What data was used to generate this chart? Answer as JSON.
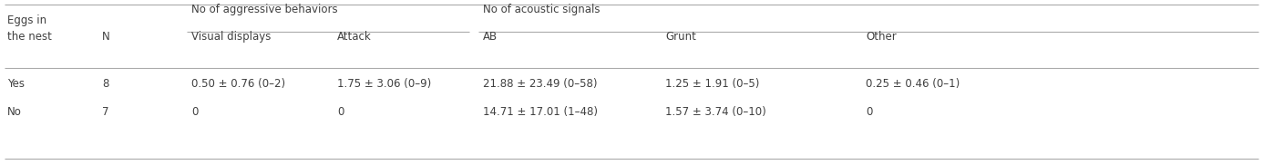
{
  "col_headers_row1_agg": "No of aggressive behaviors",
  "col_headers_row1_aco": "No of acoustic signals",
  "col_headers_row2": [
    "Eggs in\nthe nest",
    "N",
    "Visual displays",
    "Attack",
    "AB",
    "Grunt",
    "Other"
  ],
  "rows": [
    [
      "Yes",
      "8",
      "0.50 ± 0.76 (0–2)",
      "1.75 ± 3.06 (0–9)",
      "21.88 ± 23.49 (0–58)",
      "1.25 ± 1.91 (0–5)",
      "0.25 ± 0.46 (0–1)"
    ],
    [
      "No",
      "7",
      "0",
      "0",
      "14.71 ± 17.01 (1–48)",
      "1.57 ± 3.74 (0–10)",
      "0"
    ]
  ],
  "background_color": "#ffffff",
  "text_color": "#404040",
  "line_color": "#aaaaaa",
  "font_size": 8.5
}
